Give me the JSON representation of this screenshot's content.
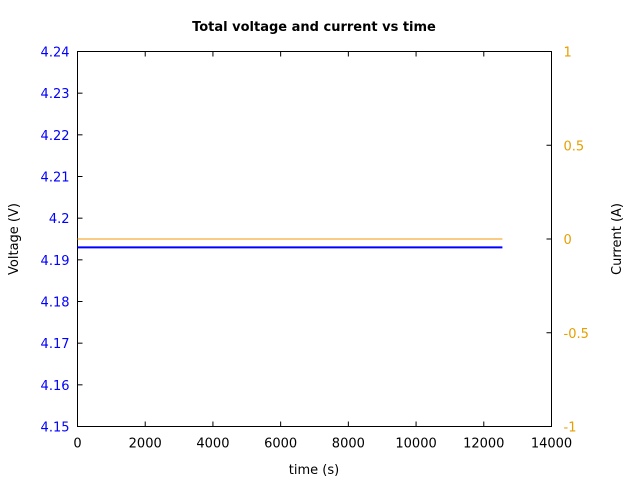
{
  "chart_data": {
    "type": "line",
    "title": "Total voltage and current vs time",
    "xlabel": "time (s)",
    "ylabel_left": "Voltage (V)",
    "ylabel_right": "Current (A)",
    "xlim": [
      0,
      14000
    ],
    "ylim_left": [
      4.15,
      4.24
    ],
    "ylim_right": [
      -1,
      1
    ],
    "x_ticks": [
      0,
      2000,
      4000,
      6000,
      8000,
      10000,
      12000,
      14000
    ],
    "y_left_ticks": [
      4.15,
      4.16,
      4.17,
      4.18,
      4.19,
      4.2,
      4.21,
      4.22,
      4.23,
      4.24
    ],
    "y_right_ticks": [
      -1,
      -0.5,
      0,
      0.5,
      1
    ],
    "grid": false,
    "series": [
      {
        "axis": "left",
        "color": "#0000ff",
        "x": [
          0,
          12550
        ],
        "y": [
          4.193,
          4.193
        ]
      },
      {
        "axis": "right",
        "color": "#f5a623",
        "x": [
          0,
          12550
        ],
        "y": [
          0,
          0
        ]
      }
    ],
    "colors": {
      "left_axis": "#0000ff",
      "right_axis": "#e69f00",
      "frame": "#000000"
    }
  }
}
